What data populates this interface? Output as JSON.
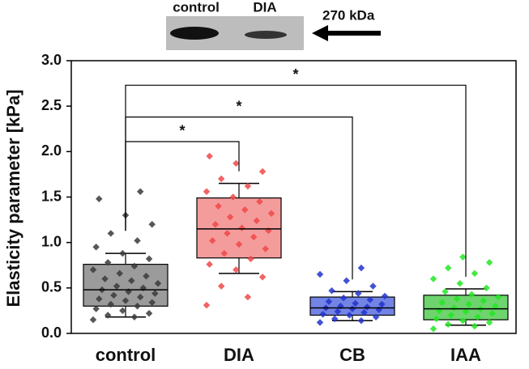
{
  "chart_data": {
    "type": "box",
    "ylabel": "Elasticity parameter [kPa]",
    "categories": [
      "control",
      "DIA",
      "CB",
      "IAA"
    ],
    "ylim": [
      0,
      3
    ],
    "yticks": [
      {
        "value": 0,
        "label": "0.0"
      },
      0.5,
      {
        "value": 1,
        "label": "1.0"
      },
      1.5,
      {
        "value": 2,
        "label": "2.0"
      },
      2.5,
      {
        "value": 3,
        "label": "3.0"
      }
    ],
    "boxes": [
      {
        "color": "#8a8a8a",
        "point_color": "#3a3a3a",
        "whisker_low": 0.18,
        "q1": 0.3,
        "median": 0.48,
        "q3": 0.76,
        "whisker_high": 0.88,
        "points": [
          0.15,
          0.18,
          0.2,
          0.22,
          0.25,
          0.27,
          0.3,
          0.32,
          0.34,
          0.36,
          0.38,
          0.4,
          0.42,
          0.44,
          0.46,
          0.48,
          0.5,
          0.52,
          0.55,
          0.58,
          0.6,
          0.63,
          0.66,
          0.7,
          0.74,
          0.78,
          0.82,
          0.88,
          0.95,
          1.02,
          1.1,
          1.2,
          1.3,
          1.48,
          1.56
        ]
      },
      {
        "color": "#f28b8b",
        "point_color": "#f04848",
        "whisker_low": 0.66,
        "q1": 0.83,
        "median": 1.15,
        "q3": 1.49,
        "whisker_high": 1.65,
        "points": [
          0.31,
          0.4,
          0.52,
          0.62,
          0.7,
          0.76,
          0.82,
          0.88,
          0.93,
          0.98,
          1.02,
          1.06,
          1.1,
          1.13,
          1.16,
          1.2,
          1.24,
          1.28,
          1.32,
          1.36,
          1.4,
          1.45,
          1.5,
          1.56,
          1.62,
          1.7,
          1.78,
          1.87,
          1.95
        ]
      },
      {
        "color": "#5a6ee0",
        "point_color": "#2233cc",
        "whisker_low": 0.14,
        "q1": 0.2,
        "median": 0.28,
        "q3": 0.4,
        "whisker_high": 0.46,
        "points": [
          0.12,
          0.14,
          0.16,
          0.18,
          0.2,
          0.21,
          0.23,
          0.24,
          0.26,
          0.27,
          0.28,
          0.29,
          0.3,
          0.32,
          0.33,
          0.35,
          0.37,
          0.39,
          0.41,
          0.44,
          0.47,
          0.52,
          0.58,
          0.65,
          0.72
        ]
      },
      {
        "color": "#55cc55",
        "point_color": "#22e622",
        "whisker_low": 0.09,
        "q1": 0.15,
        "median": 0.27,
        "q3": 0.42,
        "whisker_high": 0.49,
        "points": [
          0.05,
          0.08,
          0.1,
          0.12,
          0.14,
          0.16,
          0.18,
          0.2,
          0.22,
          0.24,
          0.25,
          0.27,
          0.28,
          0.3,
          0.32,
          0.34,
          0.36,
          0.38,
          0.4,
          0.43,
          0.46,
          0.5,
          0.55,
          0.6,
          0.66,
          0.72,
          0.78,
          0.84
        ]
      }
    ],
    "significance": [
      {
        "from": 0,
        "to": 1,
        "y": 2.11,
        "label": "*"
      },
      {
        "from": 0,
        "to": 2,
        "y": 2.38,
        "label": "*"
      },
      {
        "from": 0,
        "to": 3,
        "y": 2.73,
        "label": "*"
      }
    ],
    "inset": {
      "lanes": [
        "control",
        "DIA"
      ],
      "marker": "270 kDa"
    }
  }
}
